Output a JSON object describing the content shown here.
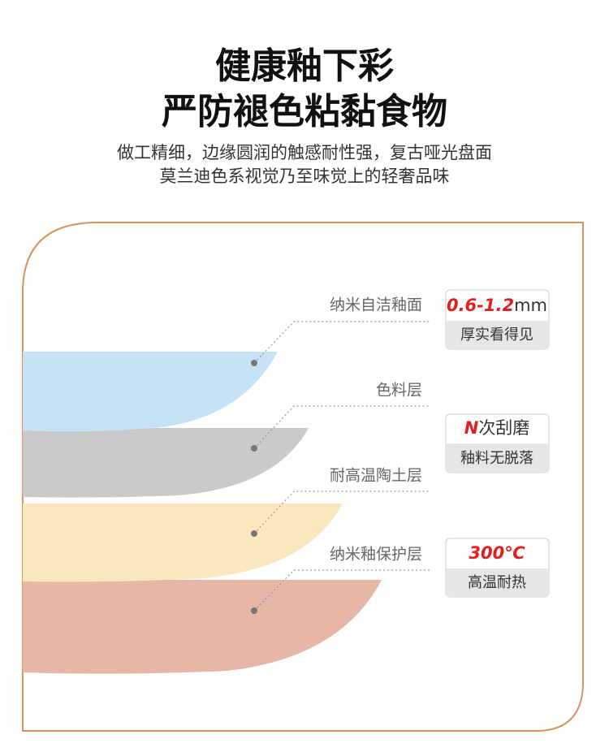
{
  "header": {
    "title_lines": [
      "健康釉下彩",
      "严防褪色粘黏食物"
    ],
    "subtitle_lines": [
      "做工精细，边缘圆润的触感耐性强，复古哑光盘面",
      "莫兰迪色系视觉乃至味觉上的轻奢品味"
    ]
  },
  "layers": [
    {
      "label": "纳米自洁釉面"
    },
    {
      "label": "色料层"
    },
    {
      "label": "耐高温陶土层"
    },
    {
      "label": "纳米釉保护层"
    }
  ],
  "badges": [
    {
      "highlight": "0.6-1.2",
      "suffix": "mm",
      "caption": "厚实看得见"
    },
    {
      "highlight": "N",
      "suffix": "次刮磨",
      "caption": "釉料无脱落"
    },
    {
      "highlight": "300℃",
      "caption": "高温耐热"
    }
  ]
}
